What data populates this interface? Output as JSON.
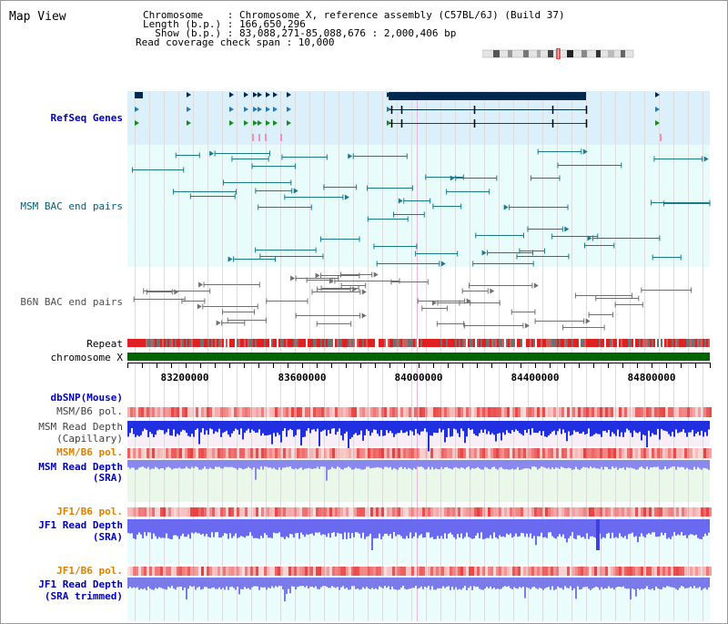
{
  "title": "Map View",
  "header": {
    "chromosome_key": "Chromosome    : ",
    "chromosome_val": "Chromosome X, reference assembly (C57BL/6J) (Build 37)",
    "length_key": "Length (b.p.) : ",
    "length_val": "166,650,296",
    "show_key": "  Show (b.p.) : ",
    "show_val": "83,088,271-85,088,676 : 2,000,406 bp",
    "coverage": "Read coverage check span : 10,000"
  },
  "tracks": {
    "refseq": "RefSeq Genes",
    "msm_bac": "MSM BAC end pairs",
    "b6n_bac": "B6N BAC end pairs",
    "repeat": "Repeat",
    "chromosome": "chromosome X",
    "dbsnp": "dbSNP(Mouse)",
    "msm_b6_pol_1": "MSM/B6 pol.",
    "msm_depth_cap_1": "MSM Read Depth",
    "msm_depth_cap_2": "(Capillary)",
    "msm_b6_pol_2": "MSM/B6 pol.",
    "msm_depth_sra_1": "MSM Read Depth",
    "msm_depth_sra_2": "(SRA)",
    "jf1_b6_pol_1": "JF1/B6 pol.",
    "jf1_depth_sra_1": "JF1 Read Depth",
    "jf1_depth_sra_2": "(SRA)",
    "jf1_b6_pol_2": "JF1/B6 pol.",
    "jf1_depth_trim_1": "JF1 Read Depth",
    "jf1_depth_trim_2": "(SRA trimmed)"
  },
  "axis": {
    "ticks": [
      "83200000",
      "83600000",
      "84000000",
      "84400000",
      "84800000"
    ]
  },
  "colors": {
    "refseq_label": "#0000c0",
    "msm_bac_label": "#006080",
    "b6n_bac_label": "#505050",
    "pol_orange": "#e08000",
    "depth_blue": "#0000c0",
    "chromosome_bar": "#006400",
    "gene_navy": "#002850"
  }
}
